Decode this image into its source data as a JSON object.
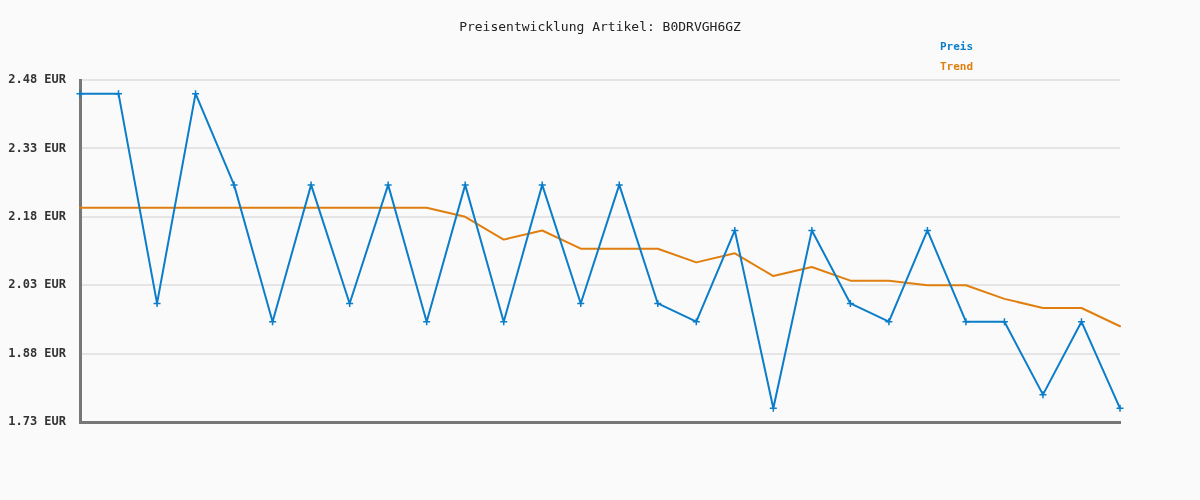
{
  "chart_data": {
    "type": "line",
    "title": "Preisentwicklung Artikel: B0DRVGH6GZ",
    "categories": [
      null,
      null,
      null,
      null,
      null,
      null,
      null,
      null,
      null,
      null,
      null,
      null,
      null,
      null,
      null,
      null,
      null,
      null,
      null,
      null,
      null,
      null,
      null,
      null,
      null,
      null,
      null,
      null
    ],
    "series": [
      {
        "name": "Preis",
        "color": "#0b7dc9",
        "marker": "cross",
        "values": [
          2.45,
          2.45,
          1.99,
          2.45,
          2.25,
          1.95,
          2.25,
          1.99,
          2.25,
          1.95,
          2.25,
          1.95,
          2.25,
          1.99,
          2.25,
          1.99,
          1.95,
          2.15,
          1.76,
          2.15,
          1.99,
          1.95,
          2.15,
          1.95,
          1.95,
          1.79,
          1.95,
          1.76
        ]
      },
      {
        "name": "Trend",
        "color": "#e07f0f",
        "marker": "none",
        "values": [
          2.2,
          2.2,
          2.2,
          2.2,
          2.2,
          2.2,
          2.2,
          2.2,
          2.2,
          2.2,
          2.18,
          2.13,
          2.15,
          2.11,
          2.11,
          2.11,
          2.08,
          2.1,
          2.05,
          2.07,
          2.04,
          2.04,
          2.03,
          2.03,
          2.0,
          1.98,
          1.98,
          1.94
        ]
      }
    ],
    "ylim": [
      1.73,
      2.48
    ],
    "yticks": [
      {
        "value": 1.73,
        "label": "1.73 EUR"
      },
      {
        "value": 1.88,
        "label": "1.88 EUR"
      },
      {
        "value": 2.03,
        "label": "2.03 EUR"
      },
      {
        "value": 2.18,
        "label": "2.18 EUR"
      },
      {
        "value": 2.33,
        "label": "2.33 EUR"
      },
      {
        "value": 2.48,
        "label": "2.48 EUR"
      }
    ],
    "grid": "y",
    "legend": "top right",
    "tick_labels": "y"
  }
}
